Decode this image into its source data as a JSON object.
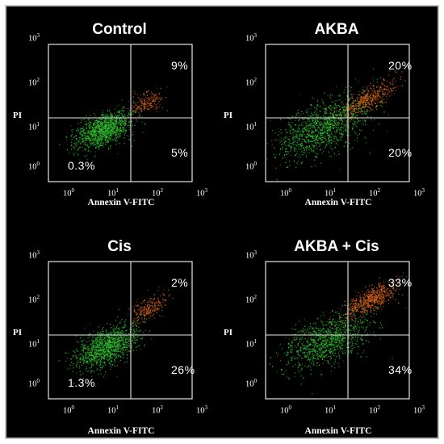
{
  "chart_data": [
    {
      "type": "scatter",
      "title": "Control",
      "xlabel": "Annexin V-FITC",
      "ylabel": "PI",
      "x_ticks": [
        "10^0",
        "10^1",
        "10^2",
        "10^3"
      ],
      "y_ticks": [
        "10^0",
        "10^1",
        "10^2",
        "10^3"
      ],
      "scale": "log",
      "quadrants": {
        "upper_right": "9%",
        "lower_right": "5%",
        "lower_left": "0.3%",
        "upper_left": ""
      },
      "colors": {
        "live": "#2eb82e",
        "apoptotic": "#d0601a"
      }
    },
    {
      "type": "scatter",
      "title": "AKBA",
      "xlabel": "Annexin V-FITC",
      "ylabel": "PI",
      "x_ticks": [
        "10^0",
        "10^1",
        "10^2",
        "10^3"
      ],
      "y_ticks": [
        "10^0",
        "10^1",
        "10^2",
        "10^3"
      ],
      "scale": "log",
      "quadrants": {
        "upper_right": "20%",
        "lower_right": "20%",
        "lower_left": "",
        "upper_left": ""
      },
      "colors": {
        "live": "#2eb82e",
        "apoptotic": "#d0601a"
      }
    },
    {
      "type": "scatter",
      "title": "Cis",
      "xlabel": "Annexin V-FITC",
      "ylabel": "PI",
      "x_ticks": [
        "10^0",
        "10^1",
        "10^2",
        "10^3"
      ],
      "y_ticks": [
        "10^0",
        "10^1",
        "10^2",
        "10^3"
      ],
      "scale": "log",
      "quadrants": {
        "upper_right": "2%",
        "lower_right": "26%",
        "lower_left": "1.3%",
        "upper_left": ""
      },
      "colors": {
        "live": "#2eb82e",
        "apoptotic": "#d0601a"
      }
    },
    {
      "type": "scatter",
      "title": "AKBA + Cis",
      "xlabel": "Annexin V-FITC",
      "ylabel": "PI",
      "x_ticks": [
        "10^0",
        "10^1",
        "10^2",
        "10^3"
      ],
      "y_ticks": [
        "10^0",
        "10^1",
        "10^2",
        "10^3"
      ],
      "scale": "log",
      "quadrants": {
        "upper_right": "33%",
        "lower_right": "34%",
        "lower_left": "",
        "upper_left": ""
      },
      "colors": {
        "live": "#2eb82e",
        "apoptotic": "#d0601a"
      }
    }
  ]
}
